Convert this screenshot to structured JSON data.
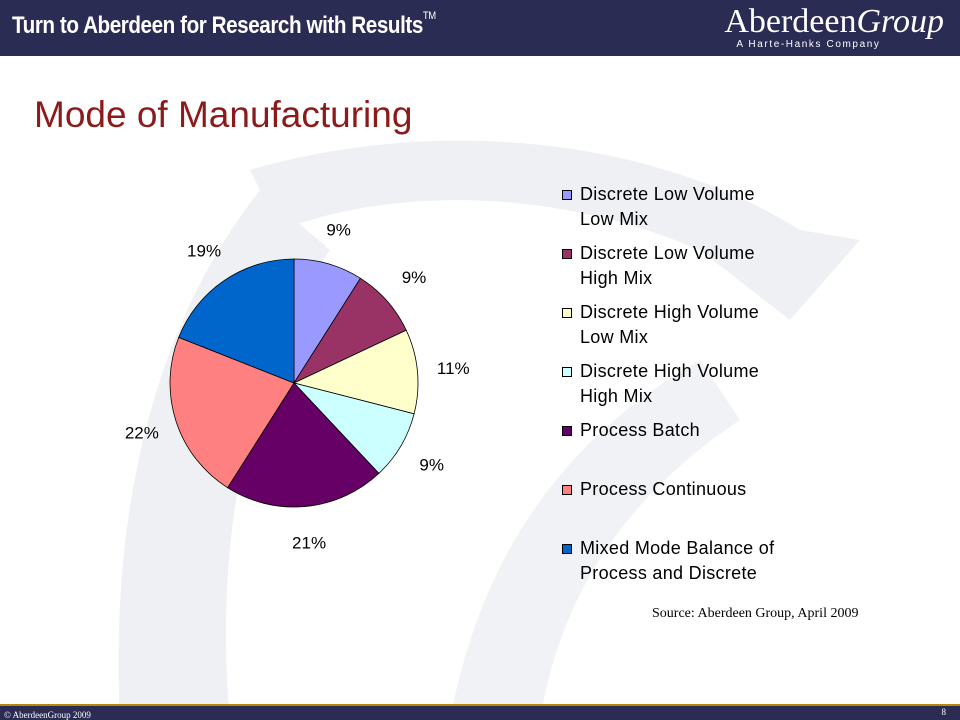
{
  "header": {
    "tagline": "Turn to Aberdeen for Research with Results",
    "trademark": "TM",
    "logo_name": "Aberdeen",
    "logo_name_italic": "Group",
    "logo_subtitle": "A Harte-Hanks Company"
  },
  "slide": {
    "title": "Mode of Manufacturing",
    "source": "Source: Aberdeen Group, April 2009"
  },
  "footer": {
    "copyright": "© AberdeenGroup 2009",
    "page_number": "8"
  },
  "colors": {
    "header_bg": "#2b2c54",
    "title": "#8b1a1a",
    "footer_rule": "#b8860b"
  },
  "chart_data": {
    "type": "pie",
    "title": "",
    "start_angle_deg": 0,
    "direction": "clockwise",
    "legend_position": "right",
    "series": [
      {
        "name": "Discrete Low  Volume Low Mix",
        "lines": [
          "Discrete Low  Volume",
          "Low Mix"
        ],
        "value": 9,
        "label": "9%",
        "color": "#9999ff"
      },
      {
        "name": "Discrete Low  Volume High Mix",
        "lines": [
          "Discrete Low  Volume",
          "High Mix"
        ],
        "value": 9,
        "label": "9%",
        "color": "#993366"
      },
      {
        "name": "Discrete High Volume Low Mix",
        "lines": [
          "Discrete High Volume",
          "Low Mix"
        ],
        "value": 11,
        "label": "11%",
        "color": "#ffffcc"
      },
      {
        "name": "Discrete High Volume High Mix",
        "lines": [
          "Discrete High Volume",
          "High Mix"
        ],
        "value": 9,
        "label": "9%",
        "color": "#ccffff"
      },
      {
        "name": "Process Batch",
        "lines": [
          "Process Batch"
        ],
        "value": 21,
        "label": "21%",
        "color": "#660066"
      },
      {
        "name": "Process Continuous",
        "lines": [
          "Process Continuous"
        ],
        "value": 22,
        "label": "22%",
        "color": "#ff8080"
      },
      {
        "name": "Mixed Mode Balance of Process and Discrete",
        "lines": [
          "Mixed Mode Balance of",
          "Process and Discrete"
        ],
        "value": 19,
        "label": "19%",
        "color": "#0066cc"
      }
    ]
  }
}
